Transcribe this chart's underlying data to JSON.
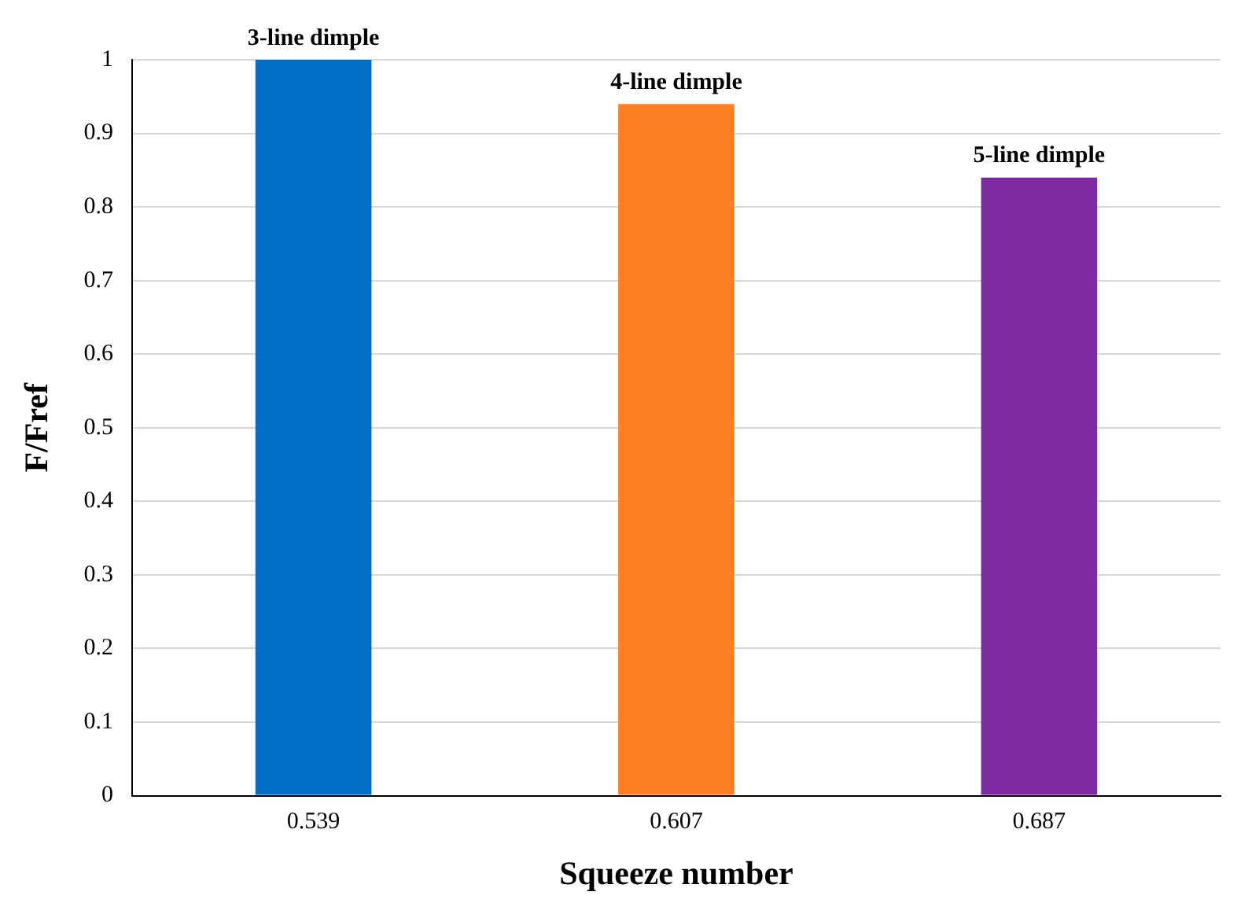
{
  "chart_data": {
    "type": "bar",
    "xlabel": "Squeeze number",
    "ylabel": "F/Fref",
    "categories": [
      "0.539",
      "0.607",
      "0.687"
    ],
    "values": [
      1,
      0.94,
      0.84
    ],
    "colors": [
      "#0070c6",
      "#ff7f22",
      "#7e2aa0"
    ],
    "annotations": [
      {
        "text": "3-line dimple",
        "x": "0.539",
        "y": 1
      },
      {
        "text": "4-line dimple",
        "x": "0.607",
        "y": 0.94
      },
      {
        "text": "5-line dimple",
        "x": "0.687",
        "y": 0.84
      }
    ],
    "ylim": [
      0,
      1
    ],
    "yticks": [
      0,
      0.1,
      0.2,
      0.3,
      0.4,
      0.5,
      0.6,
      0.7,
      0.8,
      0.9,
      1
    ],
    "grid": "y"
  }
}
